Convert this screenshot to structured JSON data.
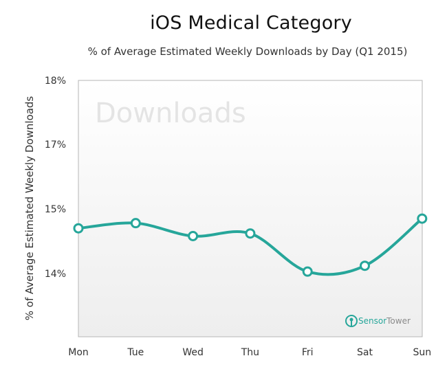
{
  "chart_data": {
    "type": "line",
    "title": "iOS Medical Category",
    "subtitle": "% of Average Estimated Weekly Downloads by Day (Q1 2015)",
    "ylabel": "% of Average Estimated Weekly Downloads",
    "xlabel": "",
    "categories": [
      "Mon",
      "Tue",
      "Wed",
      "Thu",
      "Fri",
      "Sat",
      "Sun"
    ],
    "values": [
      14.7,
      14.78,
      14.58,
      14.62,
      14.03,
      14.12,
      14.85
    ],
    "yticks": [
      {
        "value": 18,
        "label": "18%"
      },
      {
        "value": 17,
        "label": "17%"
      },
      {
        "value": 15,
        "label": "15%"
      },
      {
        "value": 14,
        "label": "14%"
      }
    ],
    "grid": false,
    "line_color": "#26a69a",
    "watermark": "Downloads"
  },
  "brand": {
    "name_part1": "Sensor",
    "name_part2": "Tower",
    "logo_icon": "sensor-tower-logo-icon",
    "color_green": "#26a69a",
    "color_gray": "#8a8a8a"
  }
}
